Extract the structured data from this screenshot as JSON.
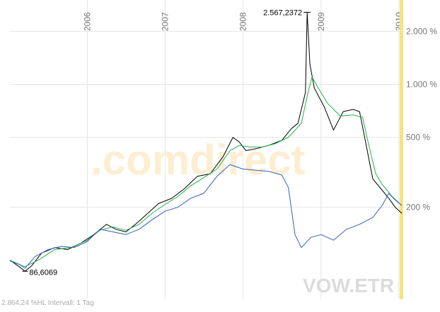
{
  "chart_data": {
    "type": "line",
    "y_scale": "log",
    "grid": true,
    "legend": "none",
    "x_tick_labels": [
      "2006",
      "2007",
      "2008",
      "2009",
      "2010"
    ],
    "x_ticks": [
      "2006-01-01",
      "2007-01-01",
      "2008-01-01",
      "2009-01-01",
      "2010-01-01"
    ],
    "x_range": [
      "2005-01-03",
      "2010-01-15"
    ],
    "y_tick_labels": [
      "2.000 %",
      "1.000 %",
      "500 %",
      "200 %"
    ],
    "y_ticks": [
      2000,
      1000,
      500,
      200
    ],
    "y_range": [
      60,
      2800
    ],
    "annotations": {
      "max_label": "2.567,2372",
      "max_value": 2567.2372,
      "max_date": "2008-10-28",
      "min_label": "86,6069",
      "min_value": 86.6069,
      "min_date": "2005-03-15",
      "footer": "2.864,24 %HL Intervall: 1 Tag",
      "watermark": ".comdirect",
      "ticker": "VOW.ETR"
    },
    "series": [
      {
        "color": "#000000",
        "points": [
          [
            "2005-01-03",
            100
          ],
          [
            "2005-02-15",
            92
          ],
          [
            "2005-03-15",
            86.6
          ],
          [
            "2005-04-15",
            93
          ],
          [
            "2005-06-01",
            110
          ],
          [
            "2005-08-01",
            118
          ],
          [
            "2005-10-01",
            115
          ],
          [
            "2005-12-01",
            125
          ],
          [
            "2006-02-01",
            140
          ],
          [
            "2006-04-01",
            160
          ],
          [
            "2006-05-15",
            150
          ],
          [
            "2006-07-01",
            145
          ],
          [
            "2006-08-15",
            160
          ],
          [
            "2006-10-01",
            180
          ],
          [
            "2006-12-01",
            210
          ],
          [
            "2007-02-01",
            225
          ],
          [
            "2007-04-01",
            255
          ],
          [
            "2007-06-01",
            300
          ],
          [
            "2007-08-01",
            310
          ],
          [
            "2007-10-01",
            390
          ],
          [
            "2007-11-15",
            500
          ],
          [
            "2007-12-15",
            470
          ],
          [
            "2008-01-15",
            420
          ],
          [
            "2008-03-01",
            430
          ],
          [
            "2008-05-01",
            450
          ],
          [
            "2008-07-01",
            480
          ],
          [
            "2008-08-15",
            560
          ],
          [
            "2008-09-15",
            600
          ],
          [
            "2008-10-20",
            900
          ],
          [
            "2008-10-28",
            2567
          ],
          [
            "2008-11-10",
            1300
          ],
          [
            "2008-12-01",
            950
          ],
          [
            "2009-01-15",
            750
          ],
          [
            "2009-03-01",
            550
          ],
          [
            "2009-04-15",
            700
          ],
          [
            "2009-06-01",
            720
          ],
          [
            "2009-07-01",
            700
          ],
          [
            "2009-08-01",
            450
          ],
          [
            "2009-09-01",
            290
          ],
          [
            "2009-10-15",
            250
          ],
          [
            "2009-11-15",
            225
          ],
          [
            "2009-12-15",
            200
          ],
          [
            "2010-01-15",
            185
          ]
        ]
      },
      {
        "color": "#22b14c",
        "points": [
          [
            "2005-01-03",
            99
          ],
          [
            "2005-03-15",
            92
          ],
          [
            "2005-05-15",
            100
          ],
          [
            "2005-08-01",
            115
          ],
          [
            "2005-10-15",
            118
          ],
          [
            "2006-01-01",
            130
          ],
          [
            "2006-03-01",
            148
          ],
          [
            "2006-05-01",
            155
          ],
          [
            "2006-07-01",
            148
          ],
          [
            "2006-09-01",
            160
          ],
          [
            "2006-11-01",
            185
          ],
          [
            "2007-01-01",
            208
          ],
          [
            "2007-03-01",
            230
          ],
          [
            "2007-05-01",
            265
          ],
          [
            "2007-07-01",
            295
          ],
          [
            "2007-09-01",
            330
          ],
          [
            "2007-11-01",
            420
          ],
          [
            "2007-12-15",
            450
          ],
          [
            "2008-02-01",
            440
          ],
          [
            "2008-04-01",
            440
          ],
          [
            "2008-06-01",
            460
          ],
          [
            "2008-08-01",
            500
          ],
          [
            "2008-10-01",
            600
          ],
          [
            "2008-11-01",
            900
          ],
          [
            "2008-11-20",
            1100
          ],
          [
            "2008-12-20",
            950
          ],
          [
            "2009-02-01",
            780
          ],
          [
            "2009-04-01",
            660
          ],
          [
            "2009-06-01",
            670
          ],
          [
            "2009-07-15",
            650
          ],
          [
            "2009-08-15",
            440
          ],
          [
            "2009-09-15",
            310
          ],
          [
            "2009-10-15",
            270
          ],
          [
            "2009-12-01",
            230
          ],
          [
            "2010-01-15",
            205
          ]
        ]
      },
      {
        "color": "#3060c0",
        "points": [
          [
            "2005-01-03",
            100
          ],
          [
            "2005-02-15",
            95
          ],
          [
            "2005-03-15",
            90
          ],
          [
            "2005-05-01",
            105
          ],
          [
            "2005-07-01",
            115
          ],
          [
            "2005-09-01",
            120
          ],
          [
            "2005-11-01",
            118
          ],
          [
            "2006-01-01",
            128
          ],
          [
            "2006-03-01",
            150
          ],
          [
            "2006-05-01",
            145
          ],
          [
            "2006-07-01",
            140
          ],
          [
            "2006-09-01",
            150
          ],
          [
            "2006-11-01",
            170
          ],
          [
            "2007-01-01",
            190
          ],
          [
            "2007-03-01",
            200
          ],
          [
            "2007-05-01",
            225
          ],
          [
            "2007-07-01",
            240
          ],
          [
            "2007-09-01",
            300
          ],
          [
            "2007-11-01",
            350
          ],
          [
            "2008-01-01",
            330
          ],
          [
            "2008-03-01",
            325
          ],
          [
            "2008-05-01",
            320
          ],
          [
            "2008-07-01",
            305
          ],
          [
            "2008-08-01",
            260
          ],
          [
            "2008-09-01",
            140
          ],
          [
            "2008-10-01",
            118
          ],
          [
            "2008-11-15",
            135
          ],
          [
            "2009-01-01",
            140
          ],
          [
            "2009-03-01",
            130
          ],
          [
            "2009-05-01",
            150
          ],
          [
            "2009-07-01",
            160
          ],
          [
            "2009-09-01",
            175
          ],
          [
            "2009-10-15",
            205
          ],
          [
            "2009-11-15",
            240
          ],
          [
            "2009-12-15",
            220
          ],
          [
            "2010-01-15",
            205
          ]
        ]
      }
    ]
  },
  "colors": {
    "grid": "#e6e6e6",
    "axis_text": "#777777",
    "highlight": "#f8e08a",
    "watermark_primary": "#fdeed2",
    "watermark_accent": "#f4f4f4",
    "ticker": "#dcdcdc",
    "footer": "#aaaaaa"
  }
}
